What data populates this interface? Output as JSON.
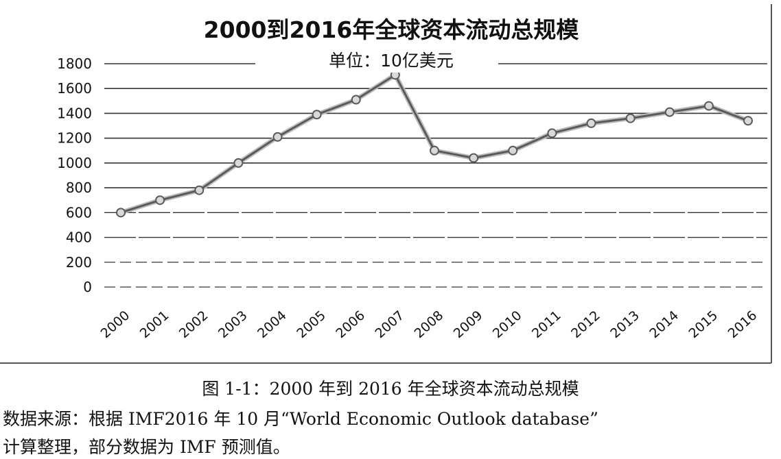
{
  "chart_data": {
    "type": "line",
    "title": "2000到2016年全球资本流动总规模",
    "subtitle": "单位：10亿美元",
    "xlabel": "",
    "ylabel": "",
    "categories": [
      "2000",
      "2001",
      "2002",
      "2003",
      "2004",
      "2005",
      "2006",
      "2007",
      "2008",
      "2009",
      "2010",
      "2011",
      "2012",
      "2013",
      "2014",
      "2015",
      "2016"
    ],
    "series": [
      {
        "values": [
          600,
          700,
          780,
          1000,
          1210,
          1390,
          1510,
          1710,
          1100,
          1040,
          1100,
          1240,
          1320,
          1360,
          1410,
          1460,
          1340
        ]
      }
    ],
    "ylim": [
      0,
      1800
    ],
    "yticks": [
      "0",
      "200",
      "400",
      "600",
      "800",
      "1000",
      "1200",
      "1400",
      "1600",
      "1800"
    ],
    "grid": true,
    "legend": "none",
    "colors": {
      "line": "#5a5a5a",
      "marker": "#8c8c8c",
      "grid": "#333333",
      "border": "#555555"
    }
  },
  "caption": {
    "figure": "图 1-1：2000 年到 2016 年全球资本流动总规模",
    "source_line_1": "数据来源：根据 IMF2016 年 10 月“World Economic Outlook database”",
    "source_line_2": "计算整理，部分数据为 IMF 预测值。"
  }
}
